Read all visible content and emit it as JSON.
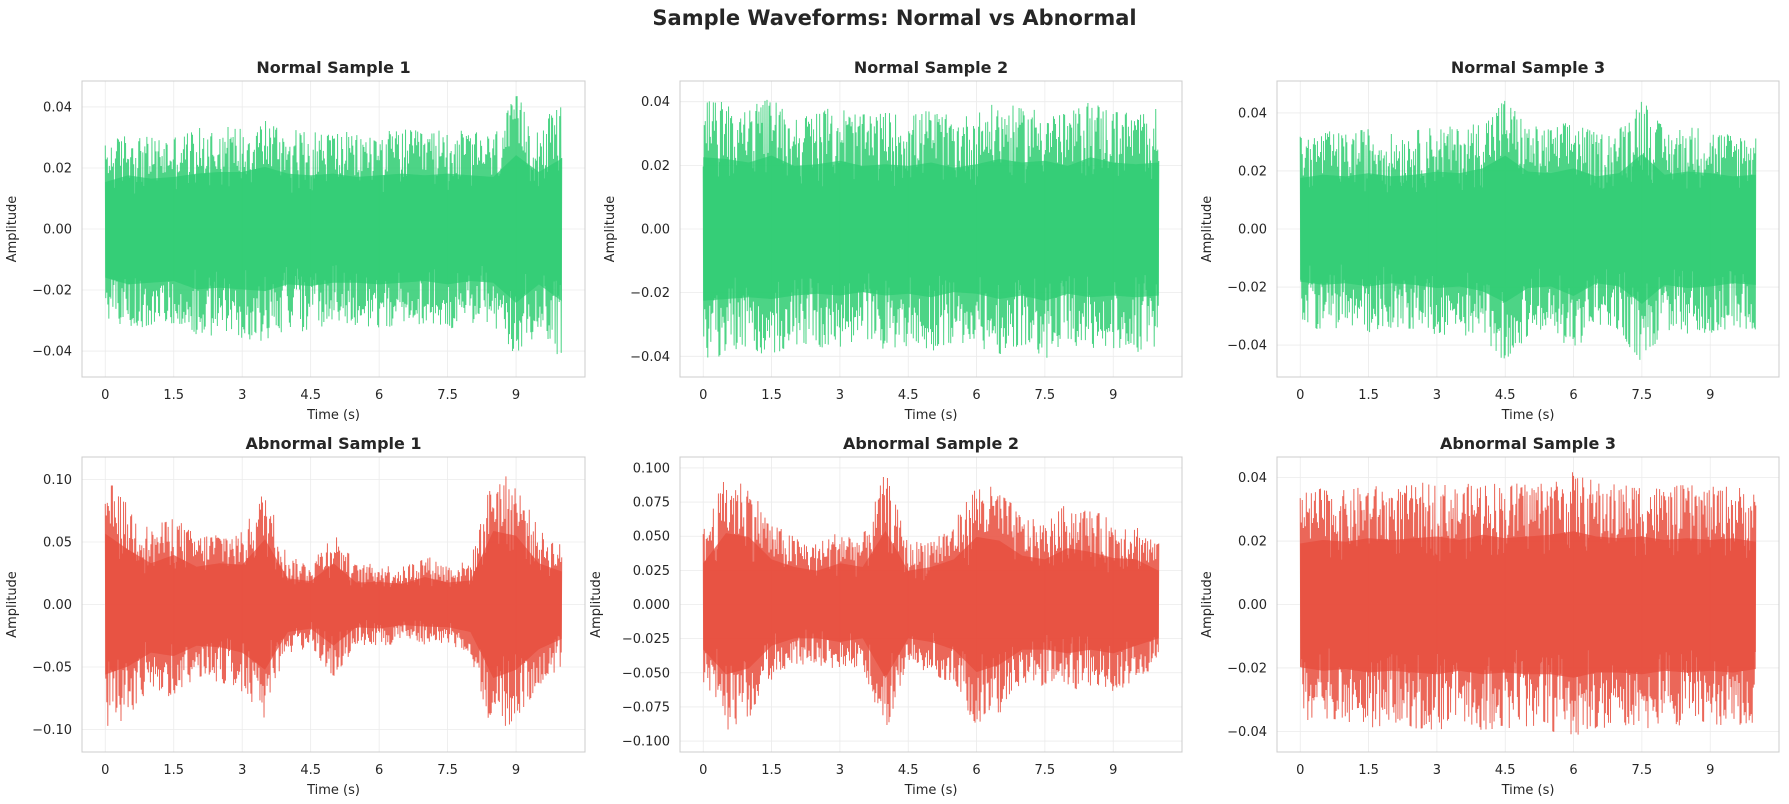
{
  "figure": {
    "title": "Sample Waveforms: Normal vs Abnormal"
  },
  "chart_data": [
    {
      "type": "line",
      "title": "Normal Sample 1",
      "xlabel": "Time (s)",
      "ylabel": "Amplitude",
      "xlim": [
        -0.51,
        10.51
      ],
      "ylim": [
        -0.0485,
        0.0485
      ],
      "xticks": [
        0,
        1.5,
        3,
        4.5,
        6,
        7.5,
        9
      ],
      "xtick_labels": [
        "0",
        "1.5",
        "3",
        "4.5",
        "6",
        "7.5",
        "9"
      ],
      "yticks": [
        -0.04,
        -0.02,
        0.0,
        0.02,
        0.04
      ],
      "ytick_labels": [
        "−0.04",
        "−0.02",
        "0.00",
        "0.02",
        "0.04"
      ],
      "grid": true,
      "color": "#2ecc71",
      "series": [
        {
          "x": [
            0,
            0.5,
            1,
            1.5,
            2,
            2.5,
            3,
            3.5,
            4,
            4.5,
            5,
            5.5,
            6,
            6.5,
            7,
            7.5,
            8,
            8.5,
            9,
            9.5,
            10
          ],
          "envelope_max": [
            0.028,
            0.032,
            0.03,
            0.031,
            0.033,
            0.034,
            0.034,
            0.037,
            0.033,
            0.032,
            0.033,
            0.031,
            0.032,
            0.033,
            0.032,
            0.033,
            0.032,
            0.031,
            0.044,
            0.034,
            0.042
          ],
          "envelope_min": [
            -0.029,
            -0.033,
            -0.032,
            -0.031,
            -0.036,
            -0.035,
            -0.036,
            -0.037,
            -0.033,
            -0.034,
            -0.032,
            -0.032,
            -0.033,
            -0.032,
            -0.031,
            -0.033,
            -0.031,
            -0.032,
            -0.044,
            -0.033,
            -0.043
          ]
        }
      ]
    },
    {
      "type": "line",
      "title": "Normal Sample 2",
      "xlabel": "Time (s)",
      "ylabel": "Amplitude",
      "xlim": [
        -0.51,
        10.51
      ],
      "ylim": [
        -0.0465,
        0.0465
      ],
      "xticks": [
        0,
        1.5,
        3,
        4.5,
        6,
        7.5,
        9
      ],
      "xtick_labels": [
        "0",
        "1.5",
        "3",
        "4.5",
        "6",
        "7.5",
        "9"
      ],
      "yticks": [
        -0.04,
        -0.02,
        0.0,
        0.02,
        0.04
      ],
      "ytick_labels": [
        "−0.04",
        "−0.02",
        "0.00",
        "0.02",
        "0.04"
      ],
      "grid": true,
      "color": "#2ecc71",
      "series": [
        {
          "x": [
            0,
            0.5,
            1,
            1.5,
            2,
            2.5,
            3,
            3.5,
            4,
            4.5,
            5,
            5.5,
            6,
            6.5,
            7,
            7.5,
            8,
            8.5,
            9,
            9.5,
            10
          ],
          "envelope_max": [
            0.041,
            0.04,
            0.038,
            0.042,
            0.036,
            0.037,
            0.039,
            0.036,
            0.037,
            0.036,
            0.038,
            0.035,
            0.037,
            0.04,
            0.038,
            0.039,
            0.036,
            0.041,
            0.038,
            0.037,
            0.038
          ],
          "envelope_min": [
            -0.041,
            -0.04,
            -0.039,
            -0.04,
            -0.038,
            -0.037,
            -0.038,
            -0.036,
            -0.038,
            -0.037,
            -0.039,
            -0.036,
            -0.037,
            -0.04,
            -0.038,
            -0.041,
            -0.037,
            -0.039,
            -0.038,
            -0.039,
            -0.038
          ]
        }
      ]
    },
    {
      "type": "line",
      "title": "Normal Sample 3",
      "xlabel": "Time (s)",
      "ylabel": "Amplitude",
      "xlim": [
        -0.51,
        10.51
      ],
      "ylim": [
        -0.051,
        0.051
      ],
      "xticks": [
        0,
        1.5,
        3,
        4.5,
        6,
        7.5,
        9
      ],
      "xtick_labels": [
        "0",
        "1.5",
        "3",
        "4.5",
        "6",
        "7.5",
        "9"
      ],
      "yticks": [
        -0.04,
        -0.02,
        0.0,
        0.02,
        0.04
      ],
      "ytick_labels": [
        "−0.04",
        "−0.02",
        "0.00",
        "0.02",
        "0.04"
      ],
      "grid": true,
      "color": "#2ecc71",
      "series": [
        {
          "x": [
            0,
            0.5,
            1,
            1.5,
            2,
            2.5,
            3,
            3.5,
            4,
            4.5,
            5,
            5.5,
            6,
            6.5,
            7,
            7.5,
            8,
            8.5,
            9,
            9.5,
            10
          ],
          "envelope_max": [
            0.032,
            0.034,
            0.033,
            0.035,
            0.033,
            0.034,
            0.036,
            0.035,
            0.038,
            0.046,
            0.036,
            0.035,
            0.038,
            0.033,
            0.035,
            0.047,
            0.034,
            0.036,
            0.035,
            0.033,
            0.034
          ],
          "envelope_min": [
            -0.033,
            -0.035,
            -0.034,
            -0.036,
            -0.034,
            -0.035,
            -0.037,
            -0.036,
            -0.039,
            -0.046,
            -0.037,
            -0.036,
            -0.042,
            -0.034,
            -0.036,
            -0.047,
            -0.035,
            -0.037,
            -0.036,
            -0.034,
            -0.035
          ]
        }
      ]
    },
    {
      "type": "line",
      "title": "Abnormal Sample 1",
      "xlabel": "Time (s)",
      "ylabel": "Amplitude",
      "xlim": [
        -0.51,
        10.51
      ],
      "ylim": [
        -0.118,
        0.118
      ],
      "xticks": [
        0,
        1.5,
        3,
        4.5,
        6,
        7.5,
        9
      ],
      "xtick_labels": [
        "0",
        "1.5",
        "3",
        "4.5",
        "6",
        "7.5",
        "9"
      ],
      "yticks": [
        -0.1,
        -0.05,
        0.0,
        0.05,
        0.1
      ],
      "ytick_labels": [
        "−0.10",
        "−0.05",
        "0.00",
        "0.05",
        "0.10"
      ],
      "grid": true,
      "color": "#e74c3c",
      "series": [
        {
          "x": [
            0,
            0.5,
            1,
            1.5,
            2,
            2.5,
            3,
            3.5,
            4,
            4.5,
            5,
            5.5,
            6,
            6.5,
            7,
            7.5,
            8,
            8.5,
            9,
            9.5,
            10
          ],
          "envelope_max": [
            0.103,
            0.08,
            0.06,
            0.072,
            0.055,
            0.06,
            0.058,
            0.095,
            0.038,
            0.034,
            0.06,
            0.032,
            0.033,
            0.03,
            0.04,
            0.032,
            0.035,
            0.107,
            0.1,
            0.06,
            0.048
          ],
          "envelope_min": [
            -0.102,
            -0.09,
            -0.07,
            -0.075,
            -0.06,
            -0.062,
            -0.07,
            -0.095,
            -0.04,
            -0.035,
            -0.06,
            -0.033,
            -0.035,
            -0.03,
            -0.032,
            -0.033,
            -0.04,
            -0.107,
            -0.095,
            -0.065,
            -0.05
          ]
        }
      ]
    },
    {
      "type": "line",
      "title": "Abnormal Sample 2",
      "xlabel": "Time (s)",
      "ylabel": "Amplitude",
      "xlim": [
        -0.51,
        10.51
      ],
      "ylim": [
        -0.108,
        0.108
      ],
      "xticks": [
        0,
        1.5,
        3,
        4.5,
        6,
        7.5,
        9
      ],
      "xtick_labels": [
        "0",
        "1.5",
        "3",
        "4.5",
        "6",
        "7.5",
        "9"
      ],
      "yticks": [
        -0.1,
        -0.075,
        -0.05,
        -0.025,
        0.0,
        0.025,
        0.05,
        0.075,
        0.1
      ],
      "ytick_labels": [
        "−0.100",
        "−0.075",
        "−0.050",
        "−0.025",
        "0.000",
        "0.025",
        "0.050",
        "0.075",
        "0.100"
      ],
      "grid": true,
      "color": "#e74c3c",
      "series": [
        {
          "x": [
            0,
            0.5,
            1,
            1.5,
            2,
            2.5,
            3,
            3.5,
            4,
            4.5,
            5,
            5.5,
            6,
            6.5,
            7,
            7.5,
            8,
            8.5,
            9,
            9.5,
            10
          ],
          "envelope_max": [
            0.055,
            0.095,
            0.09,
            0.06,
            0.05,
            0.045,
            0.055,
            0.05,
            0.098,
            0.045,
            0.05,
            0.06,
            0.09,
            0.085,
            0.065,
            0.06,
            0.075,
            0.07,
            0.062,
            0.06,
            0.045
          ],
          "envelope_min": [
            -0.06,
            -0.093,
            -0.085,
            -0.055,
            -0.045,
            -0.045,
            -0.05,
            -0.045,
            -0.098,
            -0.045,
            -0.05,
            -0.06,
            -0.09,
            -0.08,
            -0.06,
            -0.06,
            -0.065,
            -0.06,
            -0.065,
            -0.055,
            -0.045
          ]
        }
      ]
    },
    {
      "type": "line",
      "title": "Abnormal Sample 3",
      "xlabel": "Time (s)",
      "ylabel": "Amplitude",
      "xlim": [
        -0.51,
        10.51
      ],
      "ylim": [
        -0.0465,
        0.0465
      ],
      "xticks": [
        0,
        1.5,
        3,
        4.5,
        6,
        7.5,
        9
      ],
      "xtick_labels": [
        "0",
        "1.5",
        "3",
        "4.5",
        "6",
        "7.5",
        "9"
      ],
      "yticks": [
        -0.04,
        -0.02,
        0.0,
        0.02,
        0.04
      ],
      "ytick_labels": [
        "−0.04",
        "−0.02",
        "0.00",
        "0.02",
        "0.04"
      ],
      "grid": true,
      "color": "#e74c3c",
      "series": [
        {
          "x": [
            0,
            0.5,
            1,
            1.5,
            2,
            2.5,
            3,
            3.5,
            4,
            4.5,
            5,
            5.5,
            6,
            6.5,
            7,
            7.5,
            8,
            8.5,
            9,
            9.5,
            10
          ],
          "envelope_max": [
            0.035,
            0.037,
            0.036,
            0.038,
            0.037,
            0.038,
            0.039,
            0.037,
            0.04,
            0.038,
            0.039,
            0.04,
            0.042,
            0.039,
            0.038,
            0.039,
            0.037,
            0.038,
            0.037,
            0.038,
            0.036
          ],
          "envelope_min": [
            -0.036,
            -0.038,
            -0.037,
            -0.039,
            -0.038,
            -0.039,
            -0.04,
            -0.038,
            -0.04,
            -0.039,
            -0.04,
            -0.04,
            -0.042,
            -0.039,
            -0.039,
            -0.04,
            -0.038,
            -0.039,
            -0.038,
            -0.039,
            -0.037
          ]
        }
      ]
    }
  ]
}
